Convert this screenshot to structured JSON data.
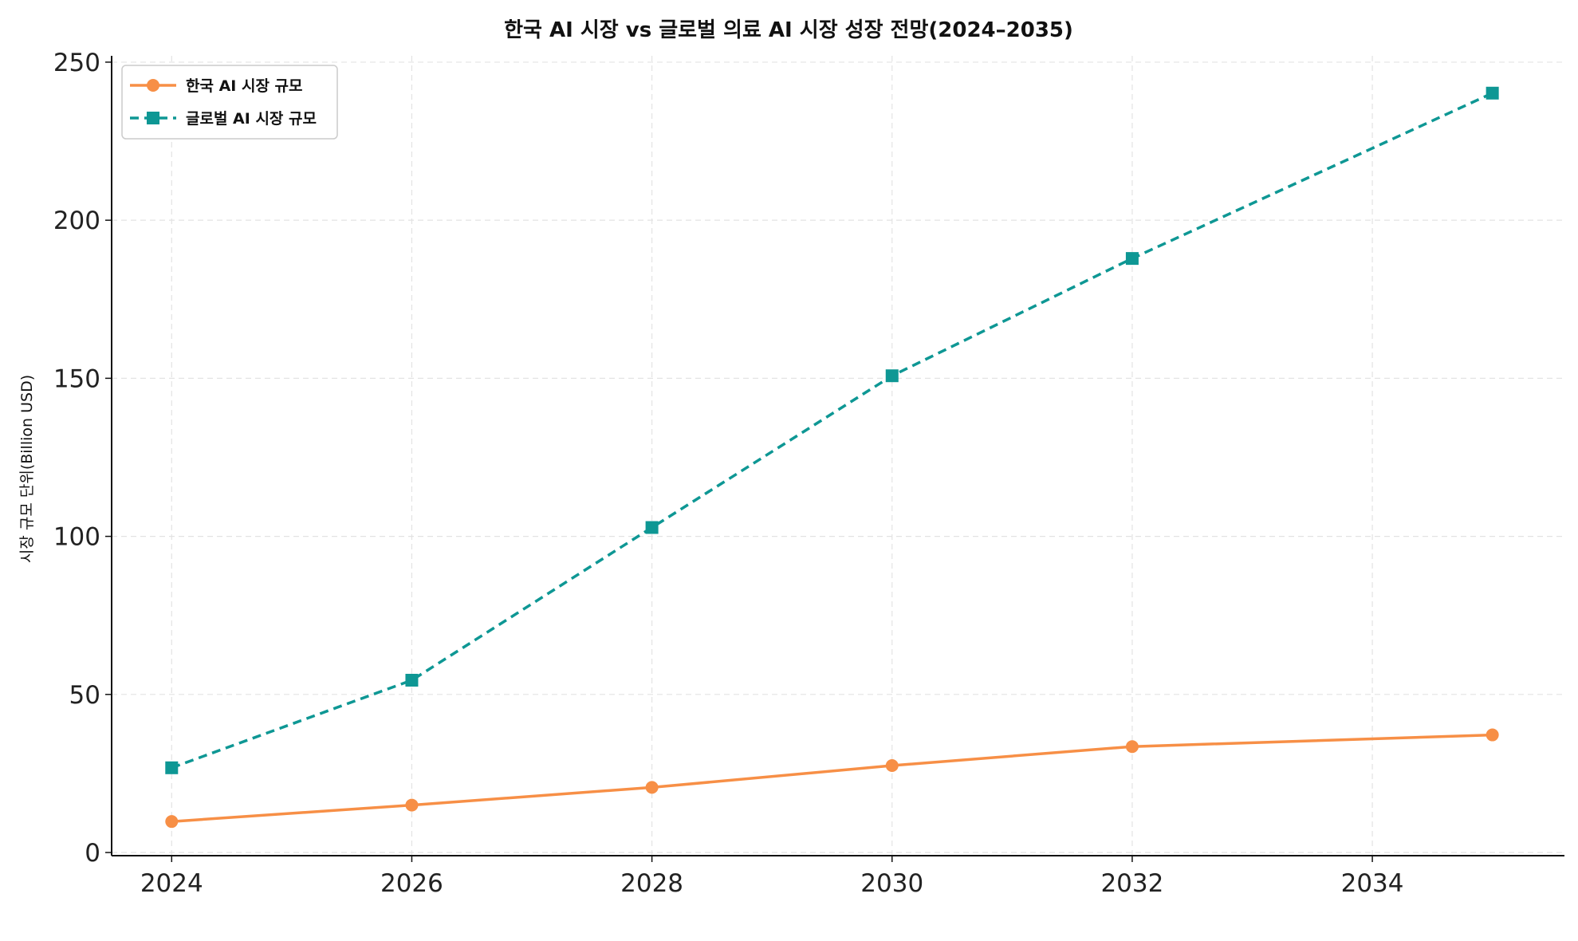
{
  "chart_data": {
    "type": "line",
    "title": "한국 AI 시장 vs 글로벌 의료 AI 시장 성장 전망(2024–2035)",
    "xlabel": "",
    "ylabel": "시장 규모 단위(Billion USD)",
    "xlim": [
      2023.5,
      2035.6
    ],
    "ylim": [
      -1,
      252
    ],
    "x_ticks": [
      2024,
      2026,
      2028,
      2030,
      2032,
      2034
    ],
    "y_ticks": [
      0,
      50,
      100,
      150,
      200,
      250
    ],
    "grid": true,
    "legend_position": "top-left",
    "series": [
      {
        "name": "한국 AI 시장 규모",
        "color": "#F78F46",
        "line_style": "solid",
        "marker": "circle",
        "x": [
          2024,
          2026,
          2028,
          2030,
          2032,
          2035
        ],
        "values": [
          9.8,
          15,
          20.6,
          27.5,
          33.5,
          37.2
        ]
      },
      {
        "name": "글로벌 AI 시장 규모",
        "color": "#0E9794",
        "line_style": "dashed",
        "marker": "square",
        "x": [
          2024,
          2026,
          2028,
          2030,
          2032,
          2035
        ],
        "values": [
          26.8,
          54.5,
          102.8,
          150.8,
          187.9,
          240.2
        ]
      }
    ]
  }
}
